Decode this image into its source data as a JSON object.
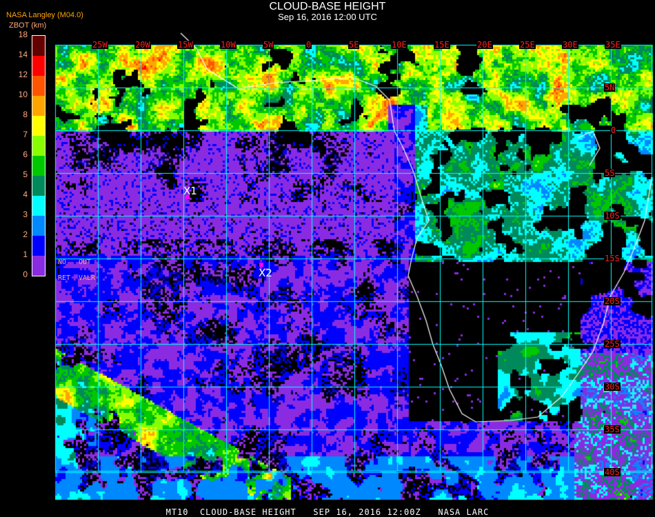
{
  "header": {
    "title": "CLOUD-BASE HEIGHT",
    "subtitle": "Sep 16, 2016 12:00 UTC",
    "organization": "NASA Langley (M04.0)",
    "variable": "ZBOT (km)"
  },
  "colorbar": {
    "tick_labels": [
      "0",
      "1",
      "2",
      "3",
      "4",
      "5",
      "6",
      "7",
      "8",
      "10",
      "12",
      "14",
      "18"
    ],
    "colors": [
      "#8a2be2",
      "#0000ff",
      "#0088ff",
      "#00ffff",
      "#008a5c",
      "#00c800",
      "#88ff00",
      "#ffff00",
      "#ffa500",
      "#ff5500",
      "#ff0000",
      "#640000"
    ],
    "no_retrieval_label": "NO RET",
    "out_of_range_label": "OUT VALR",
    "no_label_a": "NO",
    "no_label_b": "RET",
    "out_label_a": "OUT",
    "out_label_b": "VALR"
  },
  "map": {
    "lon_labels": [
      "25W",
      "20W",
      "15W",
      "10W",
      "5W",
      "0",
      "5E",
      "10E",
      "15E",
      "20E",
      "25E",
      "30E",
      "35E"
    ],
    "lat_labels": [
      "5N",
      "0",
      "5S",
      "10S",
      "15S",
      "20S",
      "25S",
      "30S",
      "35S",
      "40S"
    ],
    "grid_color": "#00ffff",
    "coastline_color": "#ffffff",
    "label_color": "#ff2020",
    "markers": [
      {
        "label": "X1",
        "color": "#ff00ff"
      },
      {
        "label": "X2",
        "color": "#ff00ff"
      }
    ]
  },
  "footer": "MT10  CLOUD-BASE HEIGHT   SEP 16, 2016 12:00Z   NASA LARC"
}
